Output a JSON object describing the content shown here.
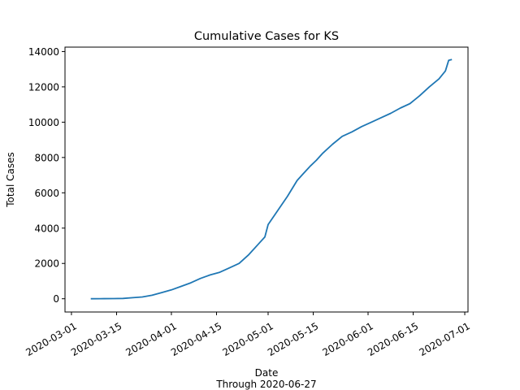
{
  "chart_data": {
    "type": "line",
    "title": "Cumulative Cases for KS",
    "xlabel": "Date",
    "xlabel_sub": "Through 2020-06-27",
    "ylabel": "Total Cases",
    "xlim": [
      "2020-02-28",
      "2020-07-02"
    ],
    "ylim": [
      -750,
      14250
    ],
    "x_ticks": [
      "2020-03-01",
      "2020-03-15",
      "2020-04-01",
      "2020-04-15",
      "2020-05-01",
      "2020-05-15",
      "2020-06-01",
      "2020-06-15",
      "2020-07-01"
    ],
    "y_ticks": [
      0,
      2000,
      4000,
      6000,
      8000,
      10000,
      12000,
      14000
    ],
    "grid": false,
    "line_color": "#1f77b4",
    "series": [
      {
        "x": [
          "2020-03-07",
          "2020-03-10",
          "2020-03-14",
          "2020-03-17",
          "2020-03-20",
          "2020-03-23",
          "2020-03-26",
          "2020-03-29",
          "2020-04-01",
          "2020-04-04",
          "2020-04-07",
          "2020-04-10",
          "2020-04-13",
          "2020-04-16",
          "2020-04-19",
          "2020-04-22",
          "2020-04-25",
          "2020-04-28",
          "2020-04-30",
          "2020-05-01",
          "2020-05-04",
          "2020-05-07",
          "2020-05-10",
          "2020-05-12",
          "2020-05-14",
          "2020-05-16",
          "2020-05-18",
          "2020-05-21",
          "2020-05-24",
          "2020-05-27",
          "2020-05-30",
          "2020-06-02",
          "2020-06-05",
          "2020-06-08",
          "2020-06-11",
          "2020-06-14",
          "2020-06-17",
          "2020-06-20",
          "2020-06-23",
          "2020-06-25",
          "2020-06-26",
          "2020-06-27"
        ],
        "y": [
          0,
          5,
          10,
          20,
          60,
          100,
          200,
          350,
          500,
          700,
          900,
          1150,
          1350,
          1500,
          1750,
          2000,
          2500,
          3100,
          3500,
          4200,
          5000,
          5800,
          6700,
          7100,
          7500,
          7850,
          8250,
          8750,
          9200,
          9450,
          9750,
          10000,
          10250,
          10500,
          10800,
          11050,
          11500,
          12000,
          12450,
          12900,
          13500,
          13550
        ]
      }
    ]
  }
}
